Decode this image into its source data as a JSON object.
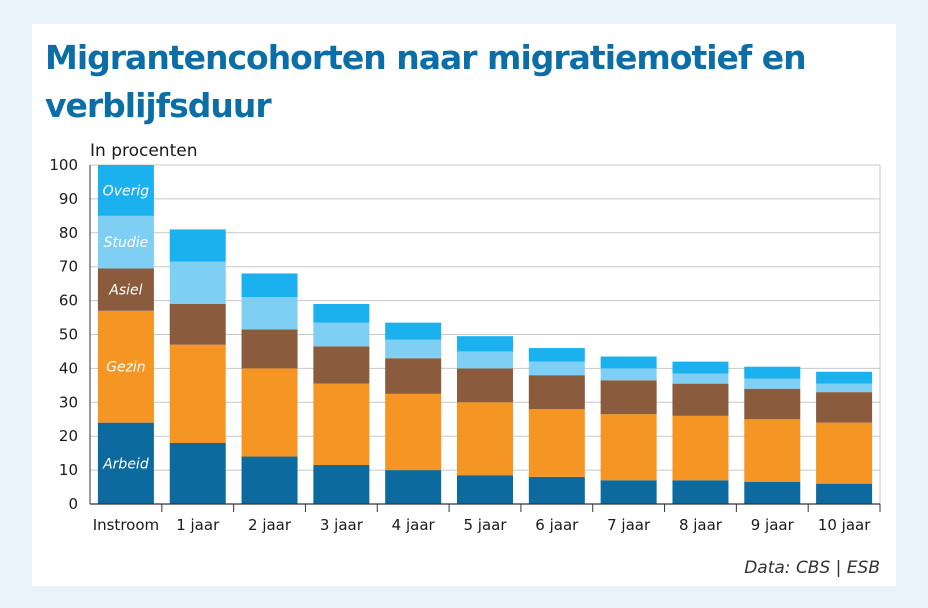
{
  "header": {
    "title": "Migrantencohorten naar migratiemotief en verblijfsduur"
  },
  "footer": {
    "source": "Data: CBS | ESB"
  },
  "colors": {
    "Arbeid": "#0d6a9e",
    "Gezin": "#f59523",
    "Asiel": "#8a5b3c",
    "Studie": "#7fcff5",
    "Overig": "#1ab1ee",
    "gridline": "#c8c8c8",
    "axis": "#333333"
  },
  "chart_data": {
    "type": "bar",
    "stacked": true,
    "ylabel": "In procenten",
    "ylim": [
      0,
      100
    ],
    "yticks": [
      0,
      10,
      20,
      30,
      40,
      50,
      60,
      70,
      80,
      90,
      100
    ],
    "grid": true,
    "categories": [
      "Instroom",
      "1 jaar",
      "2 jaar",
      "3 jaar",
      "4 jaar",
      "5 jaar",
      "6 jaar",
      "7 jaar",
      "8 jaar",
      "9 jaar",
      "10 jaar"
    ],
    "series": [
      {
        "name": "Arbeid",
        "values": [
          24,
          18,
          14,
          11.5,
          10,
          8.5,
          8,
          7,
          7,
          6.5,
          6
        ]
      },
      {
        "name": "Gezin",
        "values": [
          33,
          29,
          26,
          24,
          22.5,
          21.5,
          20,
          19.5,
          19,
          18.5,
          18
        ]
      },
      {
        "name": "Asiel",
        "values": [
          12.5,
          12,
          11.5,
          11,
          10.5,
          10,
          10,
          10,
          9.5,
          9,
          9
        ]
      },
      {
        "name": "Studie",
        "values": [
          15.5,
          12.5,
          9.5,
          7,
          5.5,
          5,
          4,
          3.5,
          3,
          3,
          2.5
        ]
      },
      {
        "name": "Overig",
        "values": [
          15,
          9.5,
          7,
          5.5,
          5,
          4.5,
          4,
          3.5,
          3.5,
          3.5,
          3.5
        ]
      }
    ]
  }
}
